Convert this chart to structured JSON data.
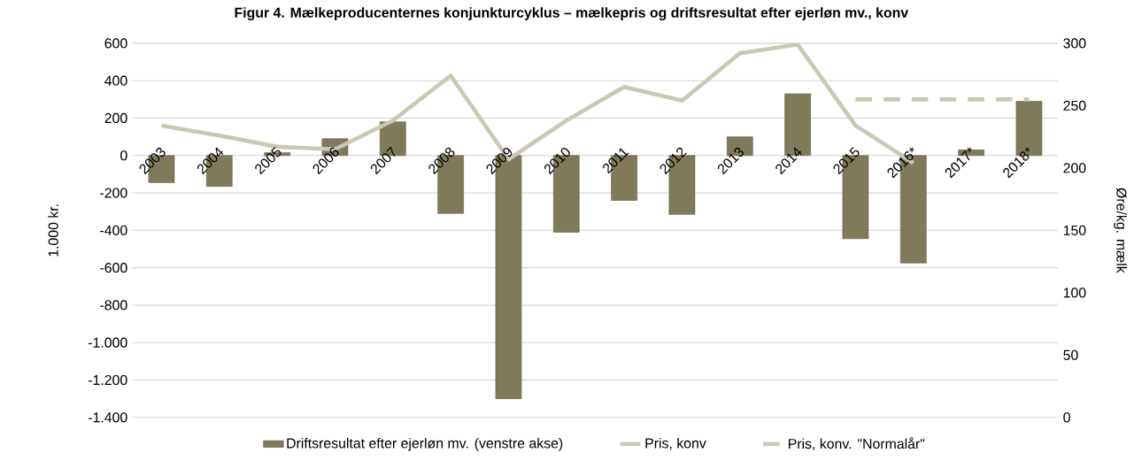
{
  "chart_data": {
    "type": "bar",
    "title": "Figur 4. Mælkeproducenternes konjunkturcyklus – mælkepris og driftsresultat efter ejerløn mv., konv",
    "ylabel": "1.000 kr.",
    "y2label": "Øre/kg. mælk",
    "categories": [
      "2003",
      "2004",
      "2005",
      "2006",
      "2007",
      "2008",
      "2009",
      "2010",
      "2011",
      "2012",
      "2013",
      "2014",
      "2015",
      "2016*",
      "2017*",
      "2018*"
    ],
    "series": [
      {
        "name": "Driftsresultat efter ejerløn mv. (venstre akse)",
        "color": "#7f7a5a",
        "values": [
          -145,
          -165,
          15,
          90,
          180,
          -310,
          -1300,
          -410,
          -240,
          -315,
          100,
          330,
          -445,
          -575,
          30,
          290
        ]
      },
      {
        "name": "Pris, konv",
        "type": "line",
        "axis": "y2",
        "color": "#c9c9b3",
        "line_style": "solid",
        "values": [
          234,
          226,
          217,
          215,
          238,
          274,
          207,
          238,
          265,
          254,
          292,
          299,
          234,
          204,
          null,
          null
        ]
      },
      {
        "name": "Pris, konv. \"Normalår\"",
        "type": "line",
        "axis": "y2",
        "color": "#c9c9b3",
        "line_style": "dashed",
        "values": [
          null,
          null,
          null,
          null,
          null,
          null,
          null,
          null,
          null,
          null,
          null,
          null,
          255,
          255,
          255,
          255
        ]
      }
    ],
    "ylim": [
      -1400,
      600
    ],
    "yticks": [
      {
        "value": -1400,
        "label": "-1.400"
      },
      {
        "value": -1200,
        "label": "-1.200"
      },
      {
        "value": -1000,
        "label": "-1.000"
      },
      -800,
      -600,
      -400,
      -200,
      0,
      200,
      400,
      600
    ],
    "y2lim": [
      0,
      300
    ],
    "y2ticks": [
      0,
      50,
      100,
      150,
      200,
      250,
      300
    ],
    "grid": "y",
    "legend": "bottom"
  }
}
